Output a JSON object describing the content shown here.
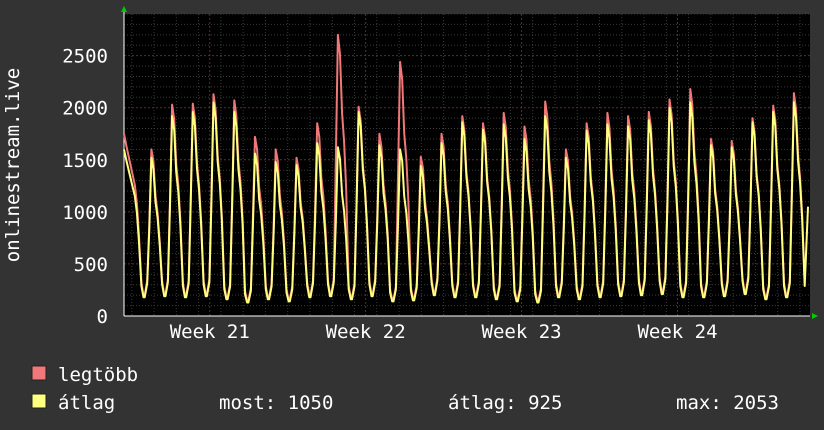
{
  "chart_data": {
    "type": "line",
    "ylabel": "onlinestream.live",
    "yticks": [
      0,
      500,
      1000,
      1500,
      2000,
      2500
    ],
    "ylim": [
      0,
      2900
    ],
    "x_unit": "week",
    "xlim": [
      20.45,
      24.85
    ],
    "xticks": [
      {
        "label": "Week 21",
        "value": 21
      },
      {
        "label": "Week 22",
        "value": 22
      },
      {
        "label": "Week 23",
        "value": 23
      },
      {
        "label": "Week 24",
        "value": 24
      }
    ],
    "grid": true,
    "series": [
      {
        "name": "legtöbb",
        "color": "#f07878",
        "peaks": [
          1750,
          1600,
          2030,
          2040,
          2130,
          2070,
          1720,
          1600,
          1520,
          1850,
          2700,
          2010,
          1750,
          2440,
          1530,
          1750,
          1920,
          1850,
          1950,
          1820,
          2060,
          1600,
          1850,
          1950,
          1920,
          1960,
          2080,
          2180,
          1700,
          1680,
          1900,
          2020,
          2140
        ],
        "troughs": [
          200,
          210,
          200,
          210,
          180,
          150,
          180,
          160,
          200,
          210,
          180,
          210,
          160,
          170,
          220,
          200,
          200,
          180,
          160,
          150,
          200,
          180,
          200,
          210,
          220,
          230,
          200,
          200,
          210,
          230,
          180,
          200
        ]
      },
      {
        "name": "átlag",
        "color": "#ffff80",
        "peaks": [
          1600,
          1520,
          1920,
          1960,
          2050,
          1960,
          1560,
          1480,
          1450,
          1660,
          1620,
          1960,
          1640,
          1600,
          1440,
          1660,
          1860,
          1790,
          1840,
          1700,
          1920,
          1520,
          1780,
          1840,
          1820,
          1880,
          2000,
          2050,
          1640,
          1620,
          1860,
          1960,
          2053
        ],
        "troughs": [
          180,
          190,
          180,
          190,
          160,
          130,
          160,
          140,
          180,
          190,
          160,
          190,
          140,
          150,
          200,
          180,
          180,
          160,
          140,
          130,
          180,
          160,
          180,
          190,
          200,
          210,
          180,
          180,
          190,
          210,
          160,
          180
        ],
        "last": 1050
      }
    ]
  },
  "legend": {
    "max_label": "legtöbb",
    "avg_label": "átlag",
    "stats": {
      "now_label": "most: 1050",
      "avg_label": "átlag: 925",
      "max_label": "max: 2053"
    }
  }
}
